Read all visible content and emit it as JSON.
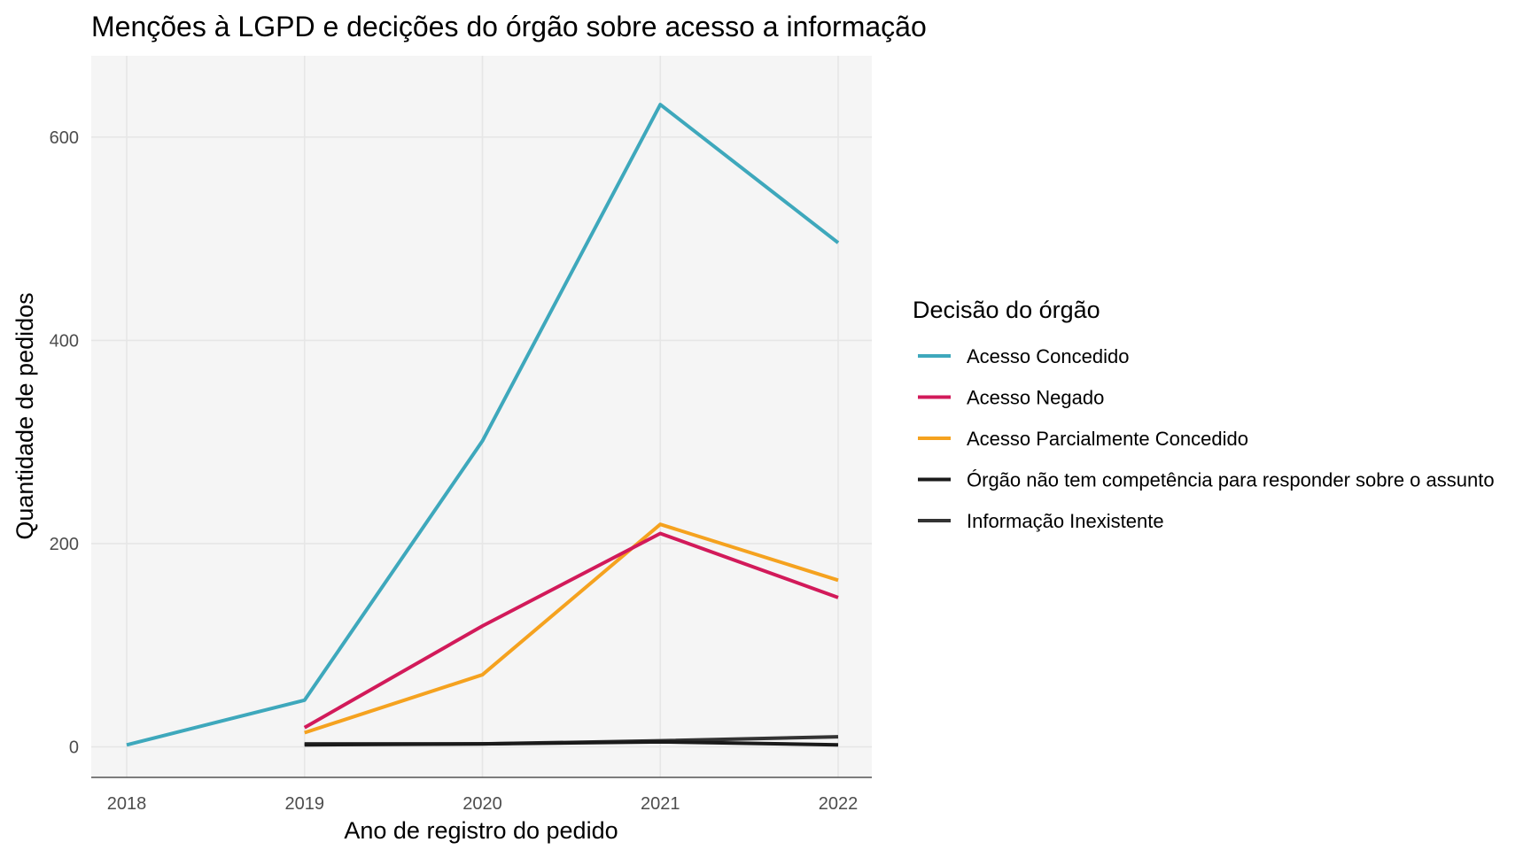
{
  "chart_data": {
    "type": "line",
    "title": "Menções à LGPD e decições do órgão sobre acesso a informação",
    "xlabel": "Ano de registro do pedido",
    "ylabel": "Quantidade de pedidos",
    "x": [
      2018,
      2019,
      2020,
      2021,
      2022
    ],
    "x_ticks": [
      "2018",
      "2019",
      "2020",
      "2021",
      "2022"
    ],
    "y_ticks": [
      "0",
      "200",
      "400",
      "600"
    ],
    "ylim": [
      -30,
      680
    ],
    "grid": true,
    "background": "#f5f5f5",
    "legend": {
      "title": "Decisão do órgão",
      "position": "right"
    },
    "series": [
      {
        "name": "Acesso Concedido",
        "color": "#3ea8bc",
        "x": [
          2018,
          2019,
          2020,
          2021,
          2022
        ],
        "values": [
          2,
          46,
          301,
          632,
          496
        ]
      },
      {
        "name": "Acesso Negado",
        "color": "#d21a5a",
        "x": [
          2019,
          2020,
          2021,
          2022
        ],
        "values": [
          19,
          119,
          210,
          147
        ]
      },
      {
        "name": "Acesso Parcialmente Concedido",
        "color": "#f5a21f",
        "x": [
          2019,
          2020,
          2021,
          2022
        ],
        "values": [
          14,
          71,
          219,
          164
        ]
      },
      {
        "name": "Órgão não tem competência para responder sobre o assunto",
        "color": "#1a1a1a",
        "x": [
          2019,
          2020,
          2021,
          2022
        ],
        "values": [
          2,
          3,
          5,
          2
        ]
      },
      {
        "name": "Informação Inexistente",
        "color": "#333333",
        "x": [
          2019,
          2020,
          2021,
          2022
        ],
        "values": [
          3,
          3,
          6,
          10
        ]
      }
    ]
  }
}
